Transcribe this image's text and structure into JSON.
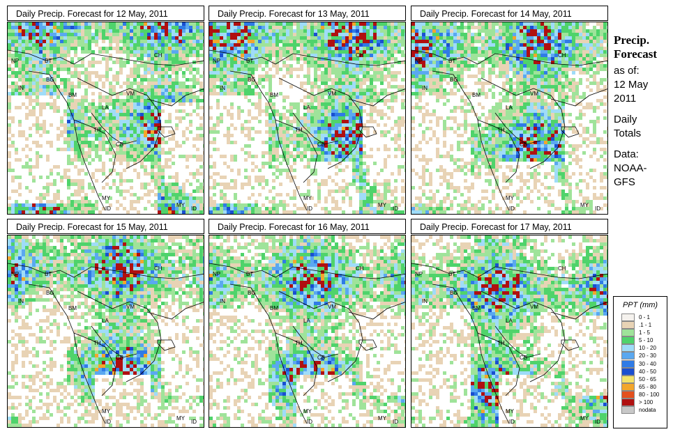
{
  "panels": [
    {
      "title": "Daily Precip. Forecast for  12 May, 2011"
    },
    {
      "title": "Daily Precip. Forecast for  13 May, 2011"
    },
    {
      "title": "Daily Precip. Forecast for  14 May, 2011"
    },
    {
      "title": "Daily Precip. Forecast for  15 May, 2011"
    },
    {
      "title": "Daily Precip. Forecast for  16 May, 2011"
    },
    {
      "title": "Daily Precip. Forecast for  17 May, 2011"
    }
  ],
  "country_labels": [
    "CH",
    "NP",
    "BT",
    "IN",
    "BG",
    "BM",
    "VM",
    "LA",
    "TH",
    "CB",
    "MY",
    "ID",
    "MY",
    "ID"
  ],
  "sidebar": {
    "title_line1": "Precip.",
    "title_line2": "Forecast",
    "asof_line1": "as of:",
    "asof_line2": "12 May",
    "asof_line3": "2011",
    "daily_line1": "Daily",
    "daily_line2": "Totals",
    "data_line1": "Data:",
    "data_line2": "NOAA-",
    "data_line3": "GFS"
  },
  "legend": {
    "title": "PPT (mm)",
    "items": [
      {
        "label": "0 - 1",
        "color": "#f5f2ee"
      },
      {
        "label": ".1 - 1",
        "color": "#e8d3b5"
      },
      {
        "label": "1 - 5",
        "color": "#9fe39a"
      },
      {
        "label": "5 - 10",
        "color": "#4fd36b"
      },
      {
        "label": "10 - 20",
        "color": "#9fdcf8"
      },
      {
        "label": "20 - 30",
        "color": "#5aa8f0"
      },
      {
        "label": "30 - 40",
        "color": "#2f7be6"
      },
      {
        "label": "40 - 50",
        "color": "#1a4fd0"
      },
      {
        "label": "50 - 65",
        "color": "#f3e36a"
      },
      {
        "label": "65 - 80",
        "color": "#f3a62c"
      },
      {
        "label": "80 - 100",
        "color": "#e3501e"
      },
      {
        "label": "> 100",
        "color": "#b01010"
      },
      {
        "label": "nodata",
        "color": "#c8c8c8"
      }
    ]
  }
}
